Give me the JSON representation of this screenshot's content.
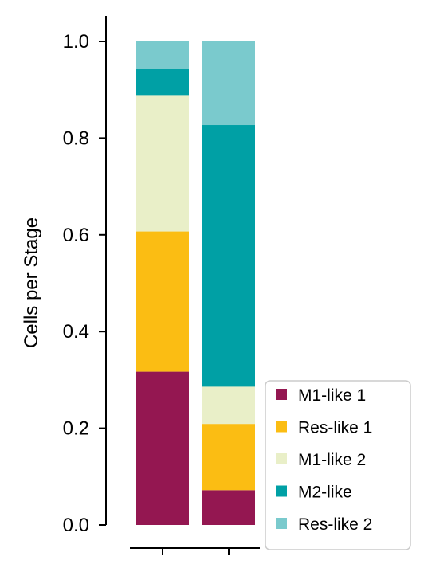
{
  "chart_data": {
    "type": "bar",
    "stacked": true,
    "categories": [
      "",
      ""
    ],
    "ylabel": "Cells per Stage",
    "xlabel": "",
    "ylim": [
      0,
      1.0
    ],
    "yticks": [
      "0.0",
      "0.2",
      "0.4",
      "0.6",
      "0.8",
      "1.0"
    ],
    "legend_position": "bottom-right",
    "grid": false,
    "series": [
      {
        "name": "M1-like 1",
        "color": "#941751",
        "values": [
          0.317,
          0.072
        ]
      },
      {
        "name": "Res-like 1",
        "color": "#FBBD13",
        "values": [
          0.29,
          0.137
        ]
      },
      {
        "name": "M1-like 2",
        "color": "#E9EFC8",
        "values": [
          0.282,
          0.077
        ]
      },
      {
        "name": "M2-like",
        "color": "#00A0A5",
        "values": [
          0.054,
          0.541
        ]
      },
      {
        "name": "Res-like 2",
        "color": "#7ACACD",
        "values": [
          0.057,
          0.173
        ]
      }
    ]
  }
}
